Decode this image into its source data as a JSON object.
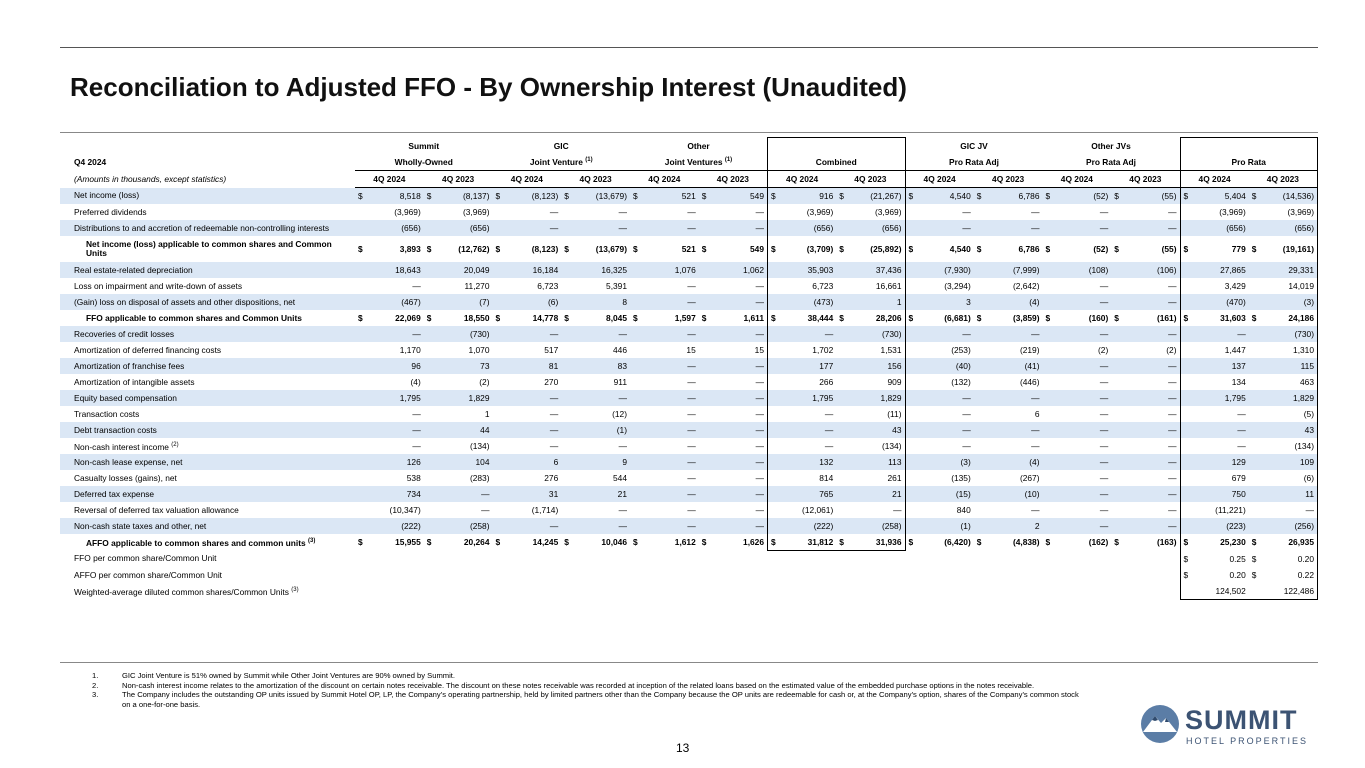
{
  "header": {
    "title": "Reconciliation to Adjusted FFO - By Ownership Interest (Unaudited)"
  },
  "table": {
    "corner": "Q4 2024",
    "units": "(Amounts in thousands, except statistics)",
    "currency": "$",
    "periods": [
      "4Q 2024",
      "4Q 2023"
    ],
    "groups": [
      {
        "top": "Summit",
        "name": "Wholly-Owned"
      },
      {
        "top": "GIC",
        "name": "Joint Venture",
        "note": "(1)"
      },
      {
        "top": "Other",
        "name": "Joint Ventures",
        "note": "(1)"
      },
      {
        "top": null,
        "name": "Combined"
      },
      {
        "top": "GIC JV",
        "name": "Pro Rata Adj"
      },
      {
        "top": "Other JVs",
        "name": "Pro Rata Adj"
      },
      {
        "top": null,
        "name": "Pro Rata"
      }
    ],
    "rows": [
      {
        "label": "Net income (loss)",
        "dollar": true,
        "values": [
          "8,518",
          "(8,137)",
          "(8,123)",
          "(13,679)",
          "521",
          "549",
          "916",
          "(21,267)",
          "4,540",
          "6,786",
          "(52)",
          "(55)",
          "5,404",
          "(14,536)"
        ]
      },
      {
        "label": "Preferred dividends",
        "values": [
          "(3,969)",
          "(3,969)",
          "—",
          "—",
          "—",
          "—",
          "(3,969)",
          "(3,969)",
          "—",
          "—",
          "—",
          "—",
          "(3,969)",
          "(3,969)"
        ]
      },
      {
        "label": "Distributions to and accretion of redeemable non-controlling interests",
        "values": [
          "(656)",
          "(656)",
          "—",
          "—",
          "—",
          "—",
          "(656)",
          "(656)",
          "—",
          "—",
          "—",
          "—",
          "(656)",
          "(656)"
        ]
      },
      {
        "label": "Net income (loss) applicable to common shares and Common Units",
        "dollar": true,
        "bold": true,
        "values": [
          "3,893",
          "(12,762)",
          "(8,123)",
          "(13,679)",
          "521",
          "549",
          "(3,709)",
          "(25,892)",
          "4,540",
          "6,786",
          "(52)",
          "(55)",
          "779",
          "(19,161)"
        ]
      },
      {
        "label": "Real estate-related depreciation",
        "values": [
          "18,643",
          "20,049",
          "16,184",
          "16,325",
          "1,076",
          "1,062",
          "35,903",
          "37,436",
          "(7,930)",
          "(7,999)",
          "(108)",
          "(106)",
          "27,865",
          "29,331"
        ]
      },
      {
        "label": "Loss on impairment and write-down of assets",
        "values": [
          "—",
          "11,270",
          "6,723",
          "5,391",
          "—",
          "—",
          "6,723",
          "16,661",
          "(3,294)",
          "(2,642)",
          "—",
          "—",
          "3,429",
          "14,019"
        ]
      },
      {
        "label": "(Gain) loss on disposal of assets and other dispositions, net",
        "values": [
          "(467)",
          "(7)",
          "(6)",
          "8",
          "—",
          "—",
          "(473)",
          "1",
          "3",
          "(4)",
          "—",
          "—",
          "(470)",
          "(3)"
        ]
      },
      {
        "label": "FFO applicable to common shares and Common Units",
        "dollar": true,
        "bold": true,
        "values": [
          "22,069",
          "18,550",
          "14,778",
          "8,045",
          "1,597",
          "1,611",
          "38,444",
          "28,206",
          "(6,681)",
          "(3,859)",
          "(160)",
          "(161)",
          "31,603",
          "24,186"
        ]
      },
      {
        "label": "Recoveries of credit losses",
        "values": [
          "—",
          "(730)",
          "—",
          "—",
          "—",
          "—",
          "—",
          "(730)",
          "—",
          "—",
          "—",
          "—",
          "—",
          "(730)"
        ]
      },
      {
        "label": "Amortization of deferred financing costs",
        "values": [
          "1,170",
          "1,070",
          "517",
          "446",
          "15",
          "15",
          "1,702",
          "1,531",
          "(253)",
          "(219)",
          "(2)",
          "(2)",
          "1,447",
          "1,310"
        ]
      },
      {
        "label": "Amortization of franchise fees",
        "values": [
          "96",
          "73",
          "81",
          "83",
          "—",
          "—",
          "177",
          "156",
          "(40)",
          "(41)",
          "—",
          "—",
          "137",
          "115"
        ]
      },
      {
        "label": "Amortization of intangible assets",
        "values": [
          "(4)",
          "(2)",
          "270",
          "911",
          "—",
          "—",
          "266",
          "909",
          "(132)",
          "(446)",
          "—",
          "—",
          "134",
          "463"
        ]
      },
      {
        "label": "Equity based compensation",
        "values": [
          "1,795",
          "1,829",
          "—",
          "—",
          "—",
          "—",
          "1,795",
          "1,829",
          "—",
          "—",
          "—",
          "—",
          "1,795",
          "1,829"
        ]
      },
      {
        "label": "Transaction costs",
        "values": [
          "—",
          "1",
          "—",
          "(12)",
          "—",
          "—",
          "—",
          "(11)",
          "—",
          "6",
          "—",
          "—",
          "—",
          "(5)"
        ]
      },
      {
        "label": "Debt transaction costs",
        "values": [
          "—",
          "44",
          "—",
          "(1)",
          "—",
          "—",
          "—",
          "43",
          "—",
          "—",
          "—",
          "—",
          "—",
          "43"
        ]
      },
      {
        "label": "Non-cash interest income",
        "note": "(2)",
        "values": [
          "—",
          "(134)",
          "—",
          "—",
          "—",
          "—",
          "—",
          "(134)",
          "—",
          "—",
          "—",
          "—",
          "—",
          "(134)"
        ]
      },
      {
        "label": "Non-cash lease expense, net",
        "values": [
          "126",
          "104",
          "6",
          "9",
          "—",
          "—",
          "132",
          "113",
          "(3)",
          "(4)",
          "—",
          "—",
          "129",
          "109"
        ]
      },
      {
        "label": "Casualty losses (gains), net",
        "values": [
          "538",
          "(283)",
          "276",
          "544",
          "—",
          "—",
          "814",
          "261",
          "(135)",
          "(267)",
          "—",
          "—",
          "679",
          "(6)"
        ]
      },
      {
        "label": "Deferred tax expense",
        "values": [
          "734",
          "—",
          "31",
          "21",
          "—",
          "—",
          "765",
          "21",
          "(15)",
          "(10)",
          "—",
          "—",
          "750",
          "11"
        ]
      },
      {
        "label": "Reversal of deferred tax valuation allowance",
        "values": [
          "(10,347)",
          "—",
          "(1,714)",
          "—",
          "—",
          "—",
          "(12,061)",
          "—",
          "840",
          "—",
          "—",
          "—",
          "(11,221)",
          "—"
        ]
      },
      {
        "label": "Non-cash state taxes and other, net",
        "values": [
          "(222)",
          "(258)",
          "—",
          "—",
          "—",
          "—",
          "(222)",
          "(258)",
          "(1)",
          "2",
          "—",
          "—",
          "(223)",
          "(256)"
        ]
      },
      {
        "label": "AFFO applicable to common shares and common units",
        "note": "(3)",
        "dollar": true,
        "bold": true,
        "values": [
          "15,955",
          "20,264",
          "14,245",
          "10,046",
          "1,612",
          "1,626",
          "31,812",
          "31,936",
          "(6,420)",
          "(4,838)",
          "(162)",
          "(163)",
          "25,230",
          "26,935"
        ]
      },
      {
        "label": "FFO per common share/Common Unit",
        "dollar": true,
        "values": [
          null,
          null,
          null,
          null,
          null,
          null,
          null,
          null,
          null,
          null,
          null,
          null,
          "0.25",
          "0.20"
        ]
      },
      {
        "label": "AFFO per common share/Common Unit",
        "dollar": true,
        "values": [
          null,
          null,
          null,
          null,
          null,
          null,
          null,
          null,
          null,
          null,
          null,
          null,
          "0.20",
          "0.22"
        ]
      },
      {
        "label": "Weighted-average diluted common shares/Common Units",
        "note": "(3)",
        "values": [
          null,
          null,
          null,
          null,
          null,
          null,
          null,
          null,
          null,
          null,
          null,
          null,
          "124,502",
          "122,486"
        ]
      }
    ]
  },
  "footnotes": [
    {
      "number": "1.",
      "text": "GIC Joint Venture is 51% owned by Summit while Other Joint Ventures are 90% owned by Summit."
    },
    {
      "number": "2.",
      "text": "Non-cash interest income relates to the amortization of the discount on certain notes receivable. The discount on these notes receivable was recorded at inception of the related loans based on the estimated value of the embedded purchase options in the notes receivable."
    },
    {
      "number": "3.",
      "text": "The Company includes the outstanding OP units issued by Summit Hotel OP, LP, the Company’s operating partnership, held by limited partners other than the Company because the OP units are redeemable for cash or, at the Company’s option, shares of the Company’s common stock on a one-for-one basis."
    }
  ],
  "page_number": "13",
  "logo": {
    "name": "SUMMIT",
    "tagline": "HOTEL PROPERTIES"
  }
}
